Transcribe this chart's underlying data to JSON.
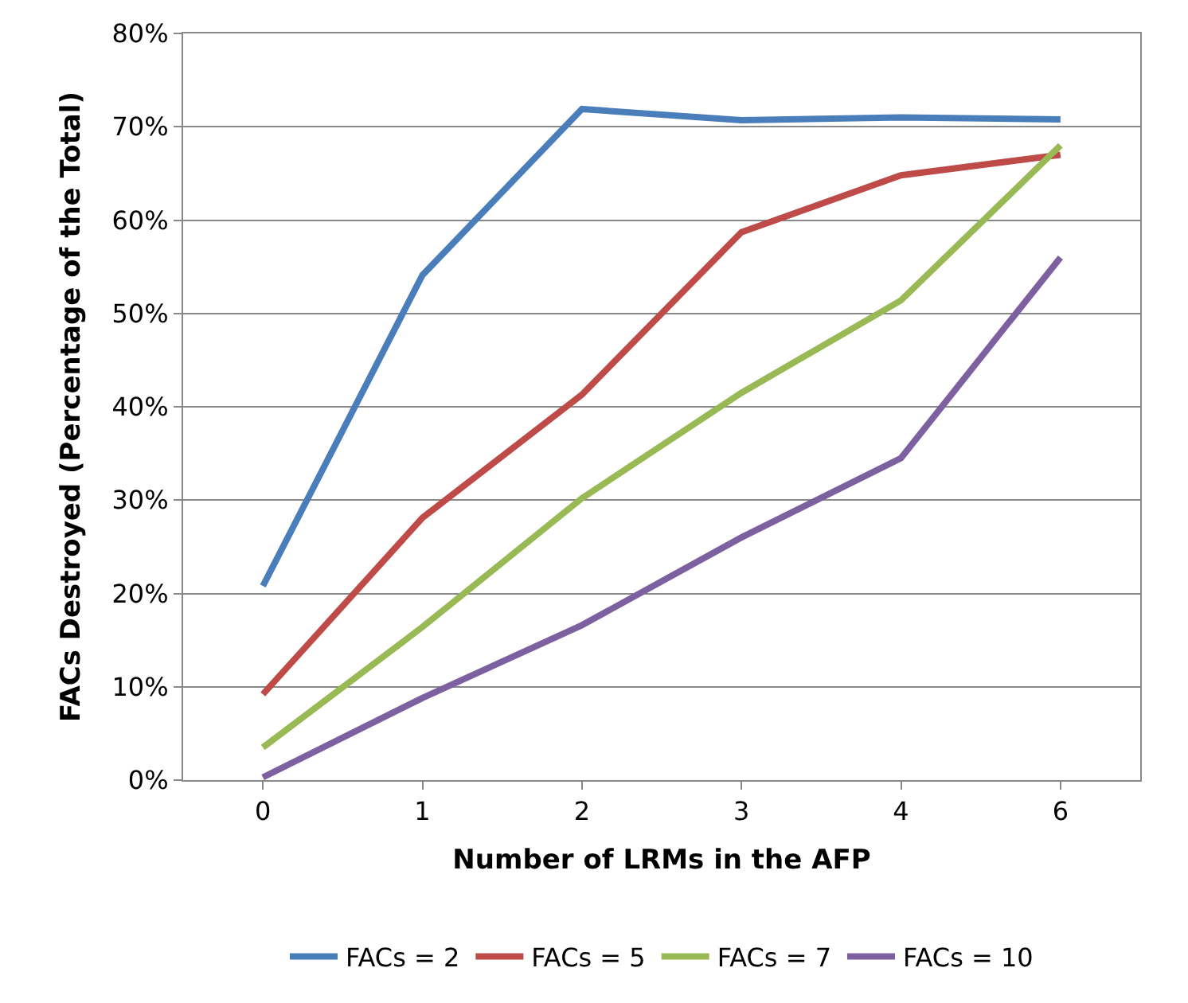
{
  "chart_data": {
    "type": "line",
    "xlabel": "Number of LRMs in the AFP",
    "ylabel": "FACs Destroyed (Percentage of the Total)",
    "categories": [
      "0",
      "1",
      "2",
      "3",
      "4",
      "6"
    ],
    "series": [
      {
        "name": "FACs = 2",
        "color": "#4a7ebb",
        "values": [
          20.8,
          54.1,
          71.9,
          70.7,
          71.0,
          70.8
        ]
      },
      {
        "name": "FACs = 5",
        "color": "#be4b48",
        "values": [
          9.2,
          28.1,
          41.3,
          58.7,
          64.8,
          67.0
        ]
      },
      {
        "name": "FACs = 7",
        "color": "#98b954",
        "values": [
          3.5,
          16.4,
          30.2,
          41.5,
          51.4,
          68.0
        ]
      },
      {
        "name": "FACs = 10",
        "color": "#7d60a0",
        "values": [
          0.3,
          8.8,
          16.6,
          26.0,
          34.5,
          56.0
        ]
      }
    ],
    "ylim": [
      0,
      80
    ],
    "yticks": [
      {
        "value": 0,
        "label": "0%"
      },
      {
        "value": 10,
        "label": "10%"
      },
      {
        "value": 20,
        "label": "20%"
      },
      {
        "value": 30,
        "label": "30%"
      },
      {
        "value": 40,
        "label": "40%"
      },
      {
        "value": 50,
        "label": "50%"
      },
      {
        "value": 60,
        "label": "60%"
      },
      {
        "value": 70,
        "label": "70%"
      },
      {
        "value": 80,
        "label": "80%"
      }
    ],
    "grid": "y",
    "legend": "bottom",
    "marker": "none",
    "line_style": "solid"
  }
}
